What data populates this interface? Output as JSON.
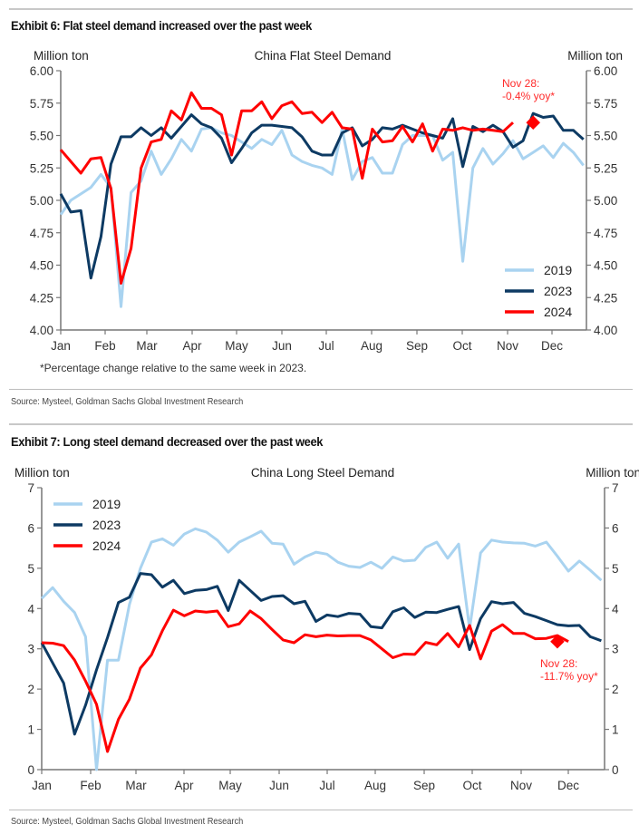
{
  "exhibits": [
    {
      "title": "Exhibit 6: Flat steel demand increased over the past week",
      "source": "Source: Mysteel, Goldman Sachs Global Investment Research",
      "footnote": "*Percentage change relative to the same week in 2023."
    },
    {
      "title": "Exhibit 7: Long steel demand decreased over the past week",
      "source": "Source: Mysteel, Goldman Sachs Global Investment Research"
    }
  ],
  "colors": {
    "2019": "#a9d3f0",
    "2023": "#0d3a63",
    "2024": "#ff0000",
    "axis": "#777777",
    "annotation": "#ff2a2a"
  },
  "chart_data": [
    {
      "type": "line",
      "title": "China Flat Steel Demand",
      "ylabel_left": "Million ton",
      "ylabel_right": "Million ton",
      "x_unit": "week of year",
      "x_tick_labels": [
        "Jan",
        "Feb",
        "Mar",
        "Apr",
        "May",
        "Jun",
        "Jul",
        "Aug",
        "Sep",
        "Oct",
        "Nov",
        "Dec"
      ],
      "ylim": [
        4.0,
        6.0
      ],
      "yticks": [
        "4.00",
        "4.25",
        "4.50",
        "4.75",
        "5.00",
        "5.25",
        "5.50",
        "5.75",
        "6.00"
      ],
      "legend_position": "bottom-right",
      "grid": false,
      "series": [
        {
          "name": "2019",
          "values": [
            4.89,
            5.0,
            5.05,
            5.1,
            5.2,
            5.1,
            4.18,
            5.06,
            5.15,
            5.38,
            5.2,
            5.32,
            5.47,
            5.38,
            5.55,
            5.56,
            5.52,
            5.5,
            5.45,
            5.4,
            5.47,
            5.43,
            5.54,
            5.35,
            5.3,
            5.27,
            5.25,
            5.2,
            5.55,
            5.16,
            5.3,
            5.33,
            5.21,
            5.21,
            5.43,
            5.5,
            5.5,
            5.5,
            5.31,
            5.37,
            4.53,
            5.25,
            5.4,
            5.28,
            5.36,
            5.46,
            5.32,
            5.37,
            5.42,
            5.33,
            5.44,
            5.37,
            5.27
          ]
        },
        {
          "name": "2023",
          "values": [
            5.05,
            4.91,
            4.92,
            4.4,
            4.72,
            5.28,
            5.49,
            5.49,
            5.56,
            5.5,
            5.56,
            5.48,
            5.57,
            5.66,
            5.59,
            5.56,
            5.48,
            5.29,
            5.4,
            5.52,
            5.58,
            5.58,
            5.57,
            5.56,
            5.49,
            5.38,
            5.35,
            5.35,
            5.52,
            5.56,
            5.42,
            5.47,
            5.56,
            5.55,
            5.58,
            5.55,
            5.52,
            5.5,
            5.48,
            5.63,
            5.26,
            5.57,
            5.53,
            5.58,
            5.53,
            5.41,
            5.46,
            5.67,
            5.64,
            5.65,
            5.54,
            5.54,
            5.47
          ]
        },
        {
          "name": "2024",
          "values": [
            5.39,
            5.3,
            5.21,
            5.32,
            5.33,
            5.09,
            4.36,
            4.63,
            5.25,
            5.45,
            5.47,
            5.69,
            5.62,
            5.83,
            5.71,
            5.71,
            5.66,
            5.35,
            5.69,
            5.69,
            5.76,
            5.63,
            5.73,
            5.76,
            5.67,
            5.68,
            5.6,
            5.68,
            5.56,
            5.55,
            5.17,
            5.55,
            5.45,
            5.46,
            5.57,
            5.45,
            5.59,
            5.38,
            5.55,
            5.54,
            5.56,
            5.54,
            5.55,
            5.54,
            5.53,
            5.6
          ]
        }
      ],
      "annotation": {
        "label_line1": "Nov 28:",
        "label_line2": "-0.4% yoy*",
        "week": 47,
        "value": 5.6
      }
    },
    {
      "type": "line",
      "title": "China Long Steel Demand",
      "ylabel_left": "Million ton",
      "ylabel_right": "Million ton",
      "x_unit": "week of year",
      "x_tick_labels": [
        "Jan",
        "Feb",
        "Mar",
        "Apr",
        "May",
        "Jun",
        "Jul",
        "Aug",
        "Sep",
        "Oct",
        "Nov",
        "Dec"
      ],
      "ylim": [
        0,
        7
      ],
      "yticks": [
        "0",
        "1",
        "2",
        "3",
        "4",
        "5",
        "6",
        "7"
      ],
      "legend_position": "top-left",
      "grid": false,
      "series": [
        {
          "name": "2019",
          "values": [
            4.25,
            4.52,
            4.18,
            3.9,
            3.3,
            0.0,
            2.72,
            2.72,
            4.1,
            5.0,
            5.65,
            5.73,
            5.57,
            5.85,
            5.98,
            5.9,
            5.7,
            5.4,
            5.65,
            5.78,
            5.92,
            5.62,
            5.6,
            5.1,
            5.28,
            5.4,
            5.35,
            5.15,
            5.05,
            5.02,
            5.15,
            5.0,
            5.28,
            5.18,
            5.2,
            5.52,
            5.65,
            5.25,
            5.6,
            3.5,
            5.38,
            5.7,
            5.65,
            5.63,
            5.62,
            5.55,
            5.65,
            5.3,
            4.93,
            5.18,
            4.95,
            4.7
          ]
        },
        {
          "name": "2023",
          "values": [
            3.15,
            2.65,
            2.15,
            0.88,
            1.6,
            2.48,
            3.28,
            4.15,
            4.28,
            4.87,
            4.84,
            4.53,
            4.7,
            4.37,
            4.45,
            4.47,
            4.55,
            3.95,
            4.7,
            4.45,
            4.2,
            4.3,
            4.32,
            4.12,
            4.18,
            3.68,
            3.84,
            3.8,
            3.88,
            3.86,
            3.55,
            3.52,
            3.92,
            4.02,
            3.78,
            3.91,
            3.9,
            3.98,
            4.05,
            2.98,
            3.75,
            4.17,
            4.12,
            4.15,
            3.88,
            3.8,
            3.7,
            3.6,
            3.57,
            3.58,
            3.3,
            3.2
          ]
        },
        {
          "name": "2024",
          "values": [
            3.15,
            3.14,
            3.08,
            2.72,
            2.2,
            1.62,
            0.45,
            1.25,
            1.75,
            2.52,
            2.85,
            3.45,
            3.96,
            3.82,
            3.94,
            3.91,
            3.94,
            3.55,
            3.62,
            3.94,
            3.75,
            3.48,
            3.22,
            3.15,
            3.35,
            3.3,
            3.34,
            3.32,
            3.33,
            3.33,
            3.22,
            3.0,
            2.78,
            2.87,
            2.86,
            3.16,
            3.1,
            3.38,
            3.05,
            3.58,
            2.75,
            3.44,
            3.6,
            3.38,
            3.38,
            3.25,
            3.26,
            3.33,
            3.18
          ]
        }
      ],
      "annotation": {
        "label_line1": "Nov 28:",
        "label_line2": "-11.7% yoy*",
        "week": 47,
        "value": 3.18
      }
    }
  ]
}
